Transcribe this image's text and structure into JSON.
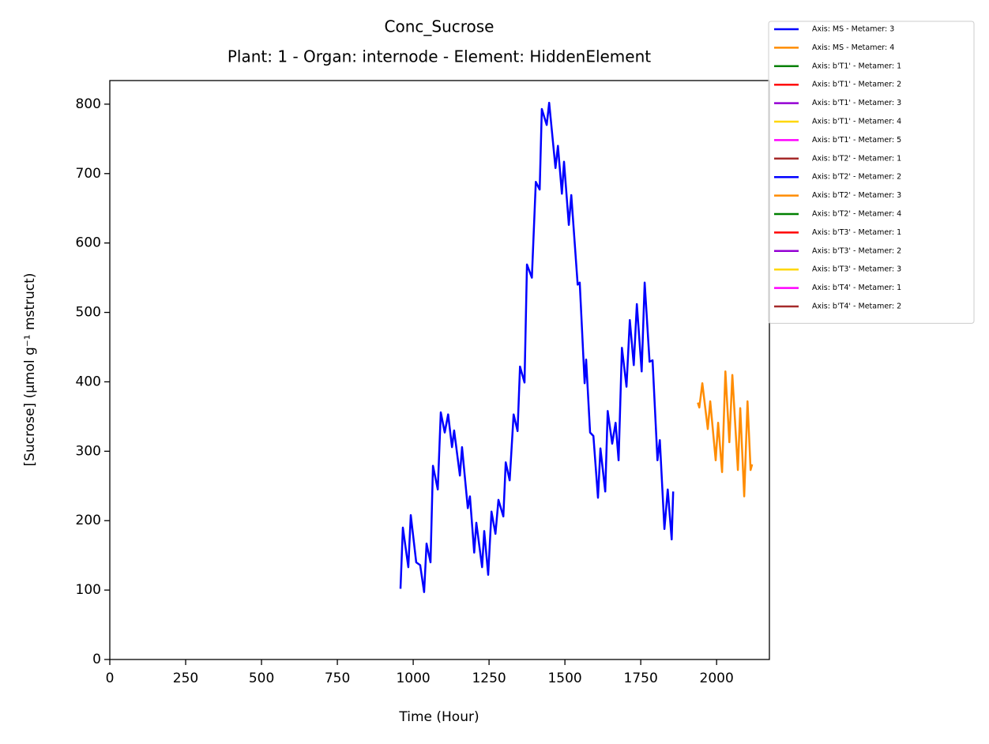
{
  "chart_data": {
    "type": "line",
    "title": "Conc_Sucrose",
    "subtitle": "Plant: 1 - Organ: internode - Element: HiddenElement",
    "x_label": "Time (Hour)",
    "y_label": "[Sucrose] (µmol g⁻¹ mstruct)",
    "xlim": [
      0,
      2174
    ],
    "ylim": [
      0,
      834
    ],
    "xticks": [
      0,
      250,
      500,
      750,
      1000,
      1250,
      1500,
      1750,
      2000
    ],
    "yticks": [
      0,
      100,
      200,
      300,
      400,
      500,
      600,
      700,
      800
    ],
    "legend_position": "upper-right-outside",
    "series": [
      {
        "name": "Axis: MS - Metamer: 3",
        "color": "#0000ff",
        "x": [
          958,
          966,
          984,
          992,
          1010,
          1023,
          1036,
          1044,
          1057,
          1065,
          1081,
          1091,
          1104,
          1115,
          1128,
          1135,
          1154,
          1161,
          1180,
          1187,
          1201,
          1208,
          1227,
          1234,
          1247,
          1258,
          1271,
          1281,
          1297,
          1305,
          1318,
          1331,
          1344,
          1352,
          1367,
          1375,
          1391,
          1404,
          1417,
          1424,
          1440,
          1448,
          1469,
          1477,
          1490,
          1497,
          1513,
          1521,
          1542,
          1549,
          1565,
          1570,
          1583,
          1594,
          1609,
          1617,
          1633,
          1641,
          1656,
          1667,
          1677,
          1688,
          1703,
          1714,
          1727,
          1737,
          1753,
          1763,
          1779,
          1789,
          1805,
          1813,
          1828,
          1839,
          1852,
          1857
        ],
        "values": [
          102,
          190,
          133,
          208,
          140,
          136,
          97,
          167,
          140,
          279,
          245,
          356,
          327,
          353,
          306,
          330,
          265,
          306,
          218,
          235,
          154,
          197,
          133,
          185,
          122,
          213,
          181,
          230,
          206,
          284,
          258,
          353,
          329,
          422,
          399,
          569,
          550,
          688,
          677,
          793,
          770,
          802,
          708,
          740,
          671,
          717,
          626,
          669,
          540,
          543,
          398,
          432,
          327,
          322,
          233,
          304,
          242,
          358,
          311,
          341,
          287,
          449,
          393,
          489,
          424,
          512,
          415,
          543,
          429,
          431,
          287,
          316,
          188,
          245,
          173,
          242
        ]
      },
      {
        "name": "Axis: MS - Metamer: 4",
        "color": "#ff8c00",
        "x": [
          1938,
          1943,
          1953,
          1971,
          1979,
          1997,
          2005,
          2018,
          2029,
          2042,
          2052,
          2070,
          2078,
          2091,
          2102,
          2112,
          2117
        ],
        "values": [
          370,
          363,
          398,
          332,
          372,
          287,
          341,
          270,
          415,
          313,
          410,
          273,
          362,
          235,
          372,
          273,
          281
        ]
      },
      {
        "name": "Axis: b'T1' - Metamer: 1",
        "color": "#008000",
        "x": [],
        "values": []
      },
      {
        "name": "Axis: b'T1' - Metamer: 2",
        "color": "#ff0000",
        "x": [],
        "values": []
      },
      {
        "name": "Axis: b'T1' - Metamer: 3",
        "color": "#9400d3",
        "x": [],
        "values": []
      },
      {
        "name": "Axis: b'T1' - Metamer: 4",
        "color": "#ffd700",
        "x": [],
        "values": []
      },
      {
        "name": "Axis: b'T1' - Metamer: 5",
        "color": "#ff00ff",
        "x": [],
        "values": []
      },
      {
        "name": "Axis: b'T2' - Metamer: 1",
        "color": "#a52a2a",
        "x": [],
        "values": []
      },
      {
        "name": "Axis: b'T2' - Metamer: 2",
        "color": "#0000ff",
        "x": [],
        "values": []
      },
      {
        "name": "Axis: b'T2' - Metamer: 3",
        "color": "#ff8c00",
        "x": [],
        "values": []
      },
      {
        "name": "Axis: b'T2' - Metamer: 4",
        "color": "#008000",
        "x": [],
        "values": []
      },
      {
        "name": "Axis: b'T3' - Metamer: 1",
        "color": "#ff0000",
        "x": [],
        "values": []
      },
      {
        "name": "Axis: b'T3' - Metamer: 2",
        "color": "#9400d3",
        "x": [],
        "values": []
      },
      {
        "name": "Axis: b'T3' - Metamer: 3",
        "color": "#ffd700",
        "x": [],
        "values": []
      },
      {
        "name": "Axis: b'T4' - Metamer: 1",
        "color": "#ff00ff",
        "x": [],
        "values": []
      },
      {
        "name": "Axis: b'T4' - Metamer: 2",
        "color": "#a52a2a",
        "x": [],
        "values": []
      }
    ]
  }
}
